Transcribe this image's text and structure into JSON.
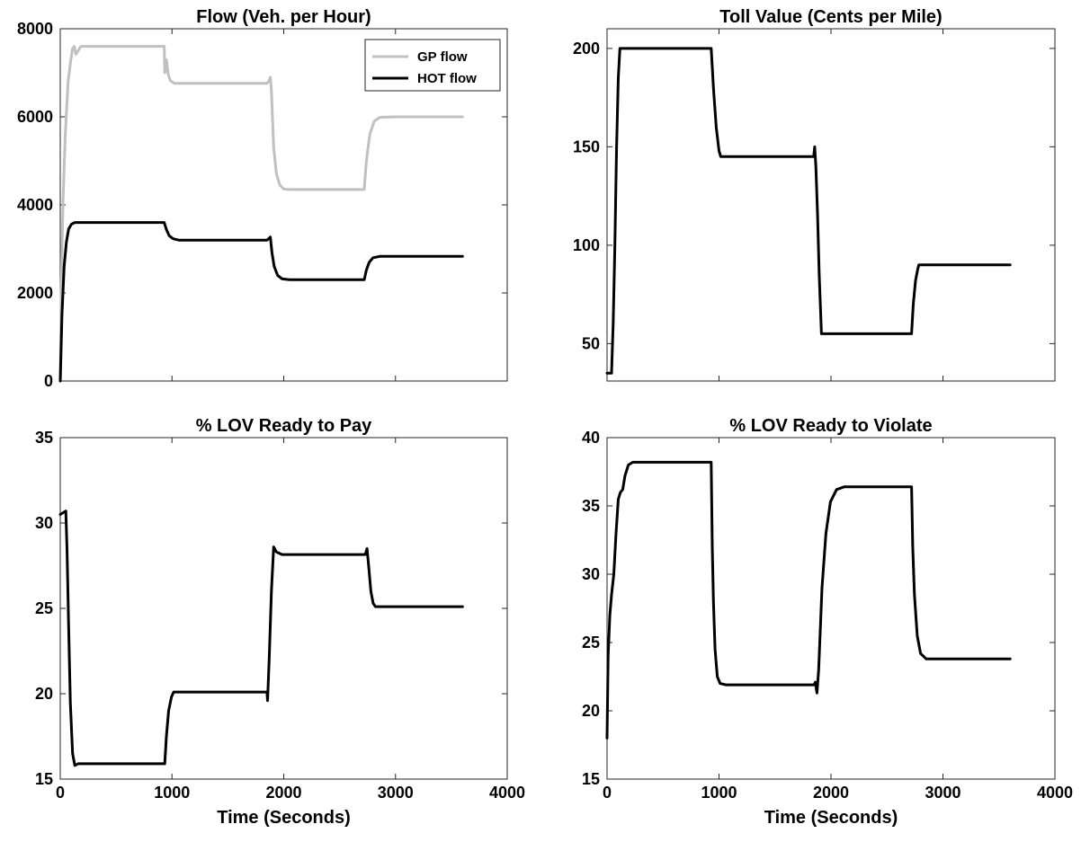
{
  "chart_data": [
    {
      "type": "line",
      "title": "Flow (Veh. per Hour)",
      "xlabel": "",
      "ylabel": "",
      "xlim": [
        0,
        4000
      ],
      "ylim": [
        0,
        8000
      ],
      "xticks": [
        "0",
        "1000",
        "2000",
        "3000",
        "4000"
      ],
      "xticks_labeled": false,
      "yticks": [
        0,
        2000,
        4000,
        6000,
        8000
      ],
      "ytick_labels": [
        "0",
        "2000",
        "4000",
        "6000",
        "8000"
      ],
      "grid": false,
      "legend": "top-right",
      "series": [
        {
          "name": "GP flow",
          "color": "#c0c0c0",
          "points": [
            [
              0,
              0
            ],
            [
              10,
              2200
            ],
            [
              25,
              4100
            ],
            [
              45,
              5600
            ],
            [
              70,
              6800
            ],
            [
              95,
              7300
            ],
            [
              110,
              7550
            ],
            [
              125,
              7600
            ],
            [
              140,
              7420
            ],
            [
              160,
              7500
            ],
            [
              185,
              7600
            ],
            [
              500,
              7600
            ],
            [
              930,
              7600
            ],
            [
              935,
              7000
            ],
            [
              950,
              7300
            ],
            [
              965,
              6980
            ],
            [
              985,
              6820
            ],
            [
              1020,
              6760
            ],
            [
              1300,
              6760
            ],
            [
              1850,
              6760
            ],
            [
              1870,
              6820
            ],
            [
              1880,
              6900
            ],
            [
              1890,
              6600
            ],
            [
              1910,
              5300
            ],
            [
              1935,
              4700
            ],
            [
              1965,
              4450
            ],
            [
              2000,
              4360
            ],
            [
              2050,
              4350
            ],
            [
              2720,
              4350
            ],
            [
              2740,
              5000
            ],
            [
              2770,
              5600
            ],
            [
              2810,
              5900
            ],
            [
              2860,
              5990
            ],
            [
              3000,
              6000
            ],
            [
              3600,
              6000
            ]
          ]
        },
        {
          "name": "HOT flow",
          "color": "#000000",
          "points": [
            [
              0,
              0
            ],
            [
              15,
              1500
            ],
            [
              35,
              2600
            ],
            [
              55,
              3150
            ],
            [
              75,
              3450
            ],
            [
              100,
              3560
            ],
            [
              130,
              3600
            ],
            [
              500,
              3600
            ],
            [
              930,
              3600
            ],
            [
              950,
              3440
            ],
            [
              975,
              3300
            ],
            [
              1010,
              3230
            ],
            [
              1060,
              3200
            ],
            [
              1850,
              3200
            ],
            [
              1870,
              3240
            ],
            [
              1880,
              3270
            ],
            [
              1895,
              2900
            ],
            [
              1915,
              2600
            ],
            [
              1945,
              2400
            ],
            [
              1985,
              2320
            ],
            [
              2050,
              2300
            ],
            [
              2720,
              2300
            ],
            [
              2740,
              2520
            ],
            [
              2765,
              2700
            ],
            [
              2800,
              2800
            ],
            [
              2860,
              2830
            ],
            [
              3600,
              2830
            ]
          ]
        }
      ]
    },
    {
      "type": "line",
      "title": "Toll Value (Cents per Mile)",
      "xlabel": "",
      "ylabel": "",
      "xlim": [
        0,
        4000
      ],
      "ylim": [
        31,
        210
      ],
      "xticks": [
        "0",
        "1000",
        "2000",
        "3000",
        "4000"
      ],
      "xticks_labeled": false,
      "yticks": [
        50,
        100,
        150,
        200
      ],
      "ytick_labels": [
        "50",
        "100",
        "150",
        "200"
      ],
      "grid": false,
      "legend": "none",
      "series": [
        {
          "color": "#000000",
          "points": [
            [
              0,
              35
            ],
            [
              40,
              35
            ],
            [
              55,
              60
            ],
            [
              70,
              100
            ],
            [
              85,
              150
            ],
            [
              100,
              185
            ],
            [
              115,
              200
            ],
            [
              930,
              200
            ],
            [
              950,
              180
            ],
            [
              975,
              160
            ],
            [
              1000,
              148
            ],
            [
              1015,
              145
            ],
            [
              1845,
              145
            ],
            [
              1855,
              150
            ],
            [
              1865,
              140
            ],
            [
              1880,
              115
            ],
            [
              1895,
              85
            ],
            [
              1915,
              55
            ],
            [
              2720,
              55
            ],
            [
              2735,
              70
            ],
            [
              2755,
              82
            ],
            [
              2775,
              88
            ],
            [
              2785,
              90
            ],
            [
              3600,
              90
            ]
          ]
        }
      ]
    },
    {
      "type": "line",
      "title": "% LOV Ready to Pay",
      "xlabel": "Time (Seconds)",
      "ylabel": "",
      "xlim": [
        0,
        4000
      ],
      "ylim": [
        15,
        35
      ],
      "xticks": [
        "0",
        "1000",
        "2000",
        "3000",
        "4000"
      ],
      "xticks_labeled": true,
      "yticks": [
        15,
        20,
        25,
        30,
        35
      ],
      "ytick_labels": [
        "15",
        "20",
        "25",
        "30",
        "35"
      ],
      "grid": false,
      "legend": "none",
      "series": [
        {
          "color": "#000000",
          "points": [
            [
              0,
              30.5
            ],
            [
              25,
              30.6
            ],
            [
              50,
              30.7
            ],
            [
              60,
              28.5
            ],
            [
              75,
              24
            ],
            [
              90,
              19.5
            ],
            [
              110,
              16.5
            ],
            [
              130,
              15.8
            ],
            [
              160,
              15.9
            ],
            [
              900,
              15.9
            ],
            [
              935,
              15.9
            ],
            [
              950,
              17.5
            ],
            [
              970,
              19
            ],
            [
              995,
              19.8
            ],
            [
              1015,
              20.1
            ],
            [
              1850,
              20.1
            ],
            [
              1855,
              19.6
            ],
            [
              1870,
              22
            ],
            [
              1890,
              26
            ],
            [
              1910,
              28.6
            ],
            [
              1935,
              28.3
            ],
            [
              1985,
              28.15
            ],
            [
              2050,
              28.15
            ],
            [
              2730,
              28.15
            ],
            [
              2745,
              28.5
            ],
            [
              2760,
              27.5
            ],
            [
              2780,
              26
            ],
            [
              2800,
              25.3
            ],
            [
              2820,
              25.1
            ],
            [
              3600,
              25.1
            ]
          ]
        }
      ]
    },
    {
      "type": "line",
      "title": "% LOV Ready to Violate",
      "xlabel": "Time (Seconds)",
      "ylabel": "",
      "xlim": [
        0,
        4000
      ],
      "ylim": [
        15,
        40
      ],
      "xticks": [
        "0",
        "1000",
        "2000",
        "3000",
        "4000"
      ],
      "xticks_labeled": true,
      "yticks": [
        15,
        20,
        25,
        30,
        35,
        40
      ],
      "ytick_labels": [
        "15",
        "20",
        "25",
        "30",
        "35",
        "40"
      ],
      "grid": false,
      "legend": "none",
      "series": [
        {
          "color": "#000000",
          "points": [
            [
              0,
              18
            ],
            [
              10,
              24
            ],
            [
              25,
              27
            ],
            [
              40,
              28.5
            ],
            [
              60,
              30
            ],
            [
              80,
              33
            ],
            [
              100,
              35.5
            ],
            [
              120,
              36
            ],
            [
              140,
              36.2
            ],
            [
              160,
              37.2
            ],
            [
              190,
              38
            ],
            [
              230,
              38.2
            ],
            [
              930,
              38.2
            ],
            [
              940,
              32
            ],
            [
              950,
              28
            ],
            [
              965,
              24.5
            ],
            [
              985,
              22.5
            ],
            [
              1010,
              22
            ],
            [
              1060,
              21.9
            ],
            [
              1850,
              21.9
            ],
            [
              1860,
              22.1
            ],
            [
              1875,
              21.3
            ],
            [
              1890,
              23
            ],
            [
              1920,
              29
            ],
            [
              1955,
              33
            ],
            [
              1995,
              35.3
            ],
            [
              2050,
              36.2
            ],
            [
              2120,
              36.4
            ],
            [
              2720,
              36.4
            ],
            [
              2730,
              32
            ],
            [
              2745,
              28.5
            ],
            [
              2770,
              25.5
            ],
            [
              2800,
              24.2
            ],
            [
              2850,
              23.8
            ],
            [
              3600,
              23.8
            ]
          ]
        }
      ]
    }
  ]
}
